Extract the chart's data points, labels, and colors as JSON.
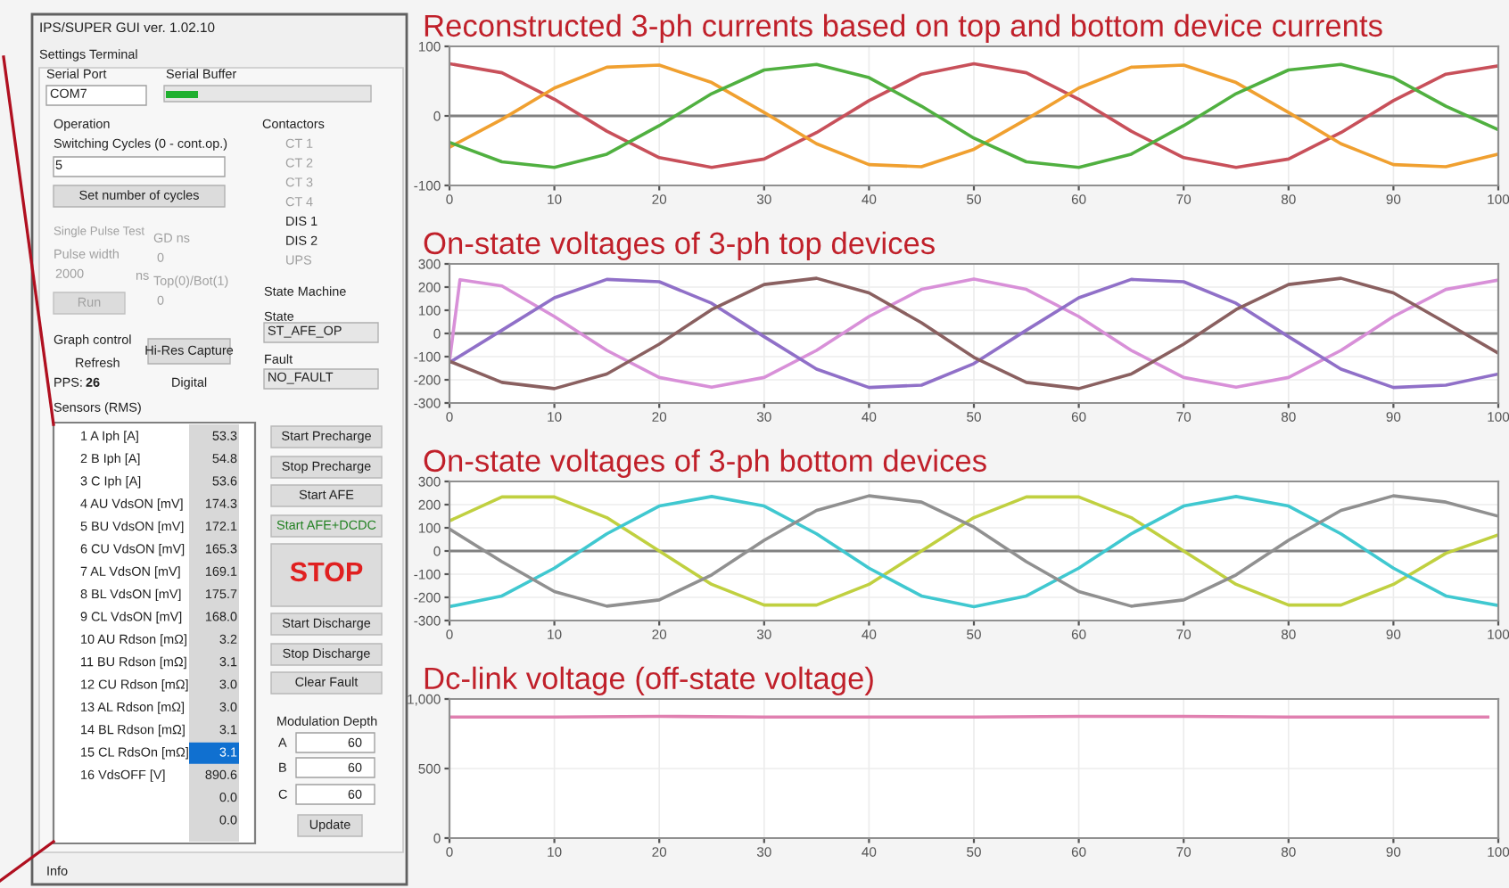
{
  "chart_data": [
    {
      "type": "other",
      "title": "IPS/SUPER GUI ver. 1.02.10",
      "annotations": [
        "Settings",
        "Terminal",
        "Serial Port",
        "COM7",
        "Serial Buffer",
        "Operation",
        "Switching Cycles (0 - cont.op.)",
        "5",
        "Set number of cycles",
        "Single Pulse Test",
        "Pulse width",
        "2000",
        "ns",
        "GD ns",
        "0",
        "Top(0)/Bot(1)",
        "0",
        "Run",
        "Contactors",
        "CT 1",
        "CT 2",
        "CT 3",
        "CT 4",
        "DIS 1",
        "DIS 2",
        "UPS",
        "State Machine",
        "State",
        "ST_AFE_OP",
        "Fault",
        "NO_FAULT",
        "Graph control",
        "Refresh",
        "PPS:",
        "26",
        "Hi-Res Capture",
        "Digital",
        "Sensors (RMS)",
        "1 A Iph [A]",
        "53.3",
        "2 B Iph [A]",
        "54.8",
        "3 C Iph [A]",
        "53.6",
        "4 AU VdsON [mV]",
        "174.3",
        "5 BU VdsON [mV]",
        "172.1",
        "6 CU VdsON [mV]",
        "165.3",
        "7 AL VdsON [mV]",
        "169.1",
        "8 BL VdsON [mV]",
        "175.7",
        "9 CL VdsON [mV]",
        "168.0",
        "10 AU Rdson [mΩ]",
        "3.2",
        "11 BU Rdson [mΩ]",
        "3.1",
        "12 CU Rdson [mΩ]",
        "3.0",
        "13 AL Rdson [mΩ]",
        "3.0",
        "14 BL Rdson [mΩ]",
        "3.1",
        "15 CL RdsOn [mΩ]",
        "3.1",
        "16 VdsOFF [V]",
        "890.6",
        "0.0",
        "0.0",
        "Start Precharge",
        "Stop Precharge",
        "Start AFE",
        "Start AFE+DCDC",
        "STOP",
        "Start Discharge",
        "Stop Discharge",
        "Clear Fault",
        "Modulation Depth",
        "A",
        "60",
        "B",
        "60",
        "C",
        "60",
        "Update",
        "Info"
      ]
    },
    {
      "type": "line",
      "title": "Reconstructed 3-ph currents based on top and bottom device currents",
      "x": [
        0,
        5,
        10,
        15,
        20,
        25,
        30,
        35,
        40,
        45,
        50,
        55,
        60,
        65,
        70,
        75,
        80,
        85,
        90,
        95,
        100
      ],
      "xlim": [
        0,
        100
      ],
      "xticks": [
        0,
        10,
        20,
        30,
        40,
        50,
        60,
        70,
        80,
        90,
        100
      ],
      "ylim": [
        -100,
        100
      ],
      "yticks": [
        -100,
        0,
        100
      ],
      "grid": true,
      "ref_lines": [
        {
          "axis": "y",
          "value": 0,
          "color": "#808080"
        }
      ],
      "series": [
        {
          "color": "#c8505a",
          "values": [
            75,
            62,
            24,
            -22,
            -60,
            -74,
            -62,
            -24,
            22,
            60,
            75,
            62,
            24,
            -22,
            -60,
            -74,
            -62,
            -24,
            22,
            60,
            72
          ]
        },
        {
          "color": "#f0a030",
          "values": [
            -45,
            -5,
            40,
            70,
            73,
            48,
            5,
            -40,
            -70,
            -73,
            -48,
            -5,
            40,
            70,
            73,
            48,
            5,
            -40,
            -70,
            -73,
            -55
          ]
        },
        {
          "color": "#50b040",
          "values": [
            -38,
            -66,
            -74,
            -55,
            -14,
            32,
            66,
            74,
            55,
            14,
            -32,
            -66,
            -74,
            -55,
            -14,
            32,
            66,
            74,
            55,
            14,
            -20
          ]
        }
      ]
    },
    {
      "type": "line",
      "title": "On-state voltages of 3-ph top devices",
      "x": [
        0,
        5,
        10,
        15,
        20,
        25,
        30,
        35,
        40,
        45,
        50,
        55,
        60,
        65,
        70,
        75,
        80,
        85,
        90,
        95,
        100
      ],
      "xlim": [
        0,
        100
      ],
      "xticks": [
        0,
        10,
        20,
        30,
        40,
        50,
        60,
        70,
        80,
        90,
        100
      ],
      "ylim": [
        -300,
        300
      ],
      "yticks": [
        -300,
        -200,
        -100,
        0,
        100,
        200,
        300
      ],
      "grid": true,
      "ref_lines": [
        {
          "axis": "y",
          "value": 0,
          "color": "#808080"
        }
      ],
      "series": [
        {
          "color": "#d890d8",
          "x": [
            0,
            1,
            5,
            10,
            15,
            20,
            25,
            30,
            35,
            40,
            45,
            50,
            55,
            60,
            65,
            70,
            75,
            80,
            85,
            90,
            95,
            100
          ],
          "values": [
            -120,
            232,
            205,
            73,
            -73,
            -190,
            -232,
            -190,
            -73,
            73,
            190,
            235,
            190,
            73,
            -73,
            -190,
            -232,
            -190,
            -73,
            73,
            190,
            230
          ]
        },
        {
          "color": "#9070c8",
          "values": [
            -125,
            14,
            154,
            233,
            223,
            130,
            -14,
            -154,
            -233,
            -223,
            -130,
            14,
            154,
            233,
            223,
            130,
            -14,
            -154,
            -233,
            -223,
            -175
          ]
        },
        {
          "color": "#8a6060",
          "values": [
            -120,
            -211,
            -238,
            -175,
            -46,
            103,
            211,
            238,
            175,
            46,
            -103,
            -211,
            -238,
            -175,
            -46,
            103,
            211,
            238,
            175,
            46,
            -85
          ]
        }
      ]
    },
    {
      "type": "line",
      "title": "On-state voltages of 3-ph bottom devices",
      "x": [
        0,
        5,
        10,
        15,
        20,
        25,
        30,
        35,
        40,
        45,
        50,
        55,
        60,
        65,
        70,
        75,
        80,
        85,
        90,
        95,
        100
      ],
      "xlim": [
        0,
        100
      ],
      "xticks": [
        0,
        10,
        20,
        30,
        40,
        50,
        60,
        70,
        80,
        90,
        100
      ],
      "ylim": [
        -300,
        300
      ],
      "yticks": [
        -300,
        -200,
        -100,
        0,
        100,
        200,
        300
      ],
      "grid": true,
      "ref_lines": [
        {
          "axis": "y",
          "value": 0,
          "color": "#808080"
        }
      ],
      "series": [
        {
          "color": "#c0d040",
          "values": [
            130,
            233,
            233,
            144,
            0,
            -144,
            -233,
            -233,
            -144,
            0,
            144,
            233,
            233,
            144,
            0,
            -144,
            -233,
            -233,
            -144,
            -10,
            70
          ]
        },
        {
          "color": "#40c8d0",
          "values": [
            -240,
            -194,
            -74,
            74,
            194,
            235,
            194,
            74,
            -74,
            -194,
            -240,
            -194,
            -74,
            74,
            194,
            235,
            194,
            74,
            -74,
            -194,
            -235
          ]
        },
        {
          "color": "#909090",
          "values": [
            95,
            -46,
            -175,
            -238,
            -211,
            -103,
            46,
            175,
            238,
            211,
            103,
            -46,
            -175,
            -238,
            -211,
            -103,
            46,
            175,
            238,
            211,
            150
          ]
        }
      ]
    },
    {
      "type": "line",
      "title": "Dc-link voltage (off-state voltage)",
      "x": [
        0,
        10,
        20,
        30,
        40,
        50,
        60,
        70,
        80,
        90,
        99
      ],
      "xlim": [
        0,
        100
      ],
      "xticks": [
        0,
        10,
        20,
        30,
        40,
        50,
        60,
        70,
        80,
        90,
        100
      ],
      "ylim": [
        0,
        1000
      ],
      "yticks": [
        0,
        500,
        {
          "value": 1000,
          "label": "1,000"
        }
      ],
      "grid": true,
      "series": [
        {
          "color": "#e080b0",
          "values": [
            870,
            870,
            875,
            870,
            870,
            870,
            875,
            875,
            870,
            870,
            870
          ]
        }
      ]
    }
  ]
}
